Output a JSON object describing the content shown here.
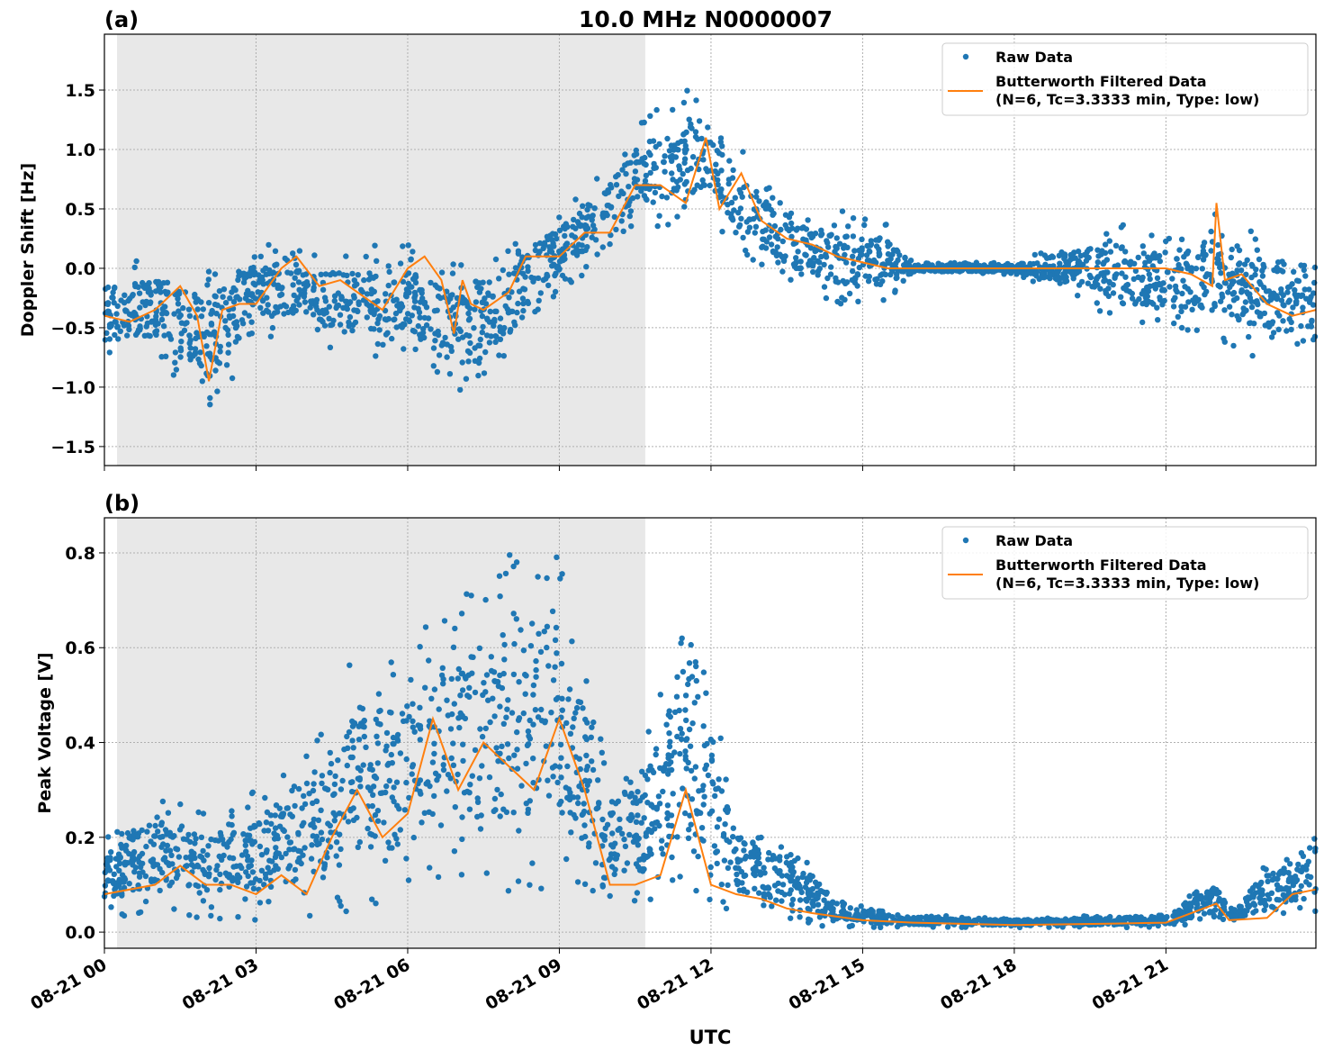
{
  "title": "10.0 MHz N0000007",
  "xlabel": "UTC",
  "colors": {
    "raw": "#1f77b4",
    "filtered": "#ff7f0e",
    "shading": "#e8e8e8",
    "grid": "#b0b0b0"
  },
  "x_ticks": [
    "08-21 00",
    "08-21 03",
    "08-21 06",
    "08-21 09",
    "08-21 12",
    "08-21 15",
    "08-21 18",
    "08-21 21"
  ],
  "x_tick_times": [
    "00:00",
    "03:00",
    "06:00",
    "09:00",
    "12:00",
    "15:00",
    "18:00",
    "21:00"
  ],
  "x_range": [
    "00:00",
    "23:58"
  ],
  "shaded_interval": [
    "00:15",
    "10:42"
  ],
  "legend": {
    "raw": "Raw Data",
    "filtered_1": "Butterworth Filtered Data",
    "filtered_2": "(N=6, Tc=3.3333 min, Type: low)",
    "placement": "upper right"
  },
  "chart_data": [
    {
      "type": "scatter+line",
      "panel_label": "(a)",
      "ylabel": "Doppler Shift [Hz]",
      "ylim": [
        -1.66,
        1.97
      ],
      "yticks": [
        -1.5,
        -1.0,
        -0.5,
        0.0,
        0.5,
        1.0,
        1.5
      ],
      "ytick_labels": [
        "−1.5",
        "−1.0",
        "−0.5",
        "0.0",
        "0.5",
        "1.0",
        "1.5"
      ],
      "grid": true,
      "series": [
        {
          "name": "Butterworth Filtered Data",
          "kind": "line",
          "x": [
            "00:00",
            "00:30",
            "01:00",
            "01:30",
            "01:50",
            "02:04",
            "02:20",
            "02:40",
            "03:00",
            "03:30",
            "03:48",
            "04:15",
            "04:40",
            "05:00",
            "05:30",
            "06:00",
            "06:20",
            "06:40",
            "06:55",
            "07:05",
            "07:15",
            "07:30",
            "08:00",
            "08:20",
            "09:00",
            "09:30",
            "10:00",
            "10:30",
            "11:00",
            "11:30",
            "11:54",
            "12:10",
            "12:36",
            "13:00",
            "13:30",
            "14:00",
            "14:30",
            "15:00",
            "15:30",
            "16:00",
            "17:00",
            "18:00",
            "19:00",
            "20:00",
            "21:00",
            "21:30",
            "21:55",
            "22:00",
            "22:10",
            "22:30",
            "23:00",
            "23:30",
            "23:58"
          ],
          "y": [
            -0.4,
            -0.45,
            -0.35,
            -0.15,
            -0.4,
            -0.95,
            -0.35,
            -0.3,
            -0.3,
            0.0,
            0.1,
            -0.15,
            -0.1,
            -0.2,
            -0.35,
            0.0,
            0.1,
            -0.1,
            -0.55,
            -0.1,
            -0.3,
            -0.35,
            -0.2,
            0.1,
            0.1,
            0.3,
            0.3,
            0.7,
            0.7,
            0.55,
            1.1,
            0.5,
            0.8,
            0.4,
            0.25,
            0.2,
            0.1,
            0.05,
            0.0,
            0.0,
            0.0,
            0.0,
            0.0,
            0.0,
            0.0,
            -0.05,
            -0.15,
            0.55,
            -0.1,
            -0.05,
            -0.3,
            -0.4,
            -0.35
          ]
        },
        {
          "name": "Raw Data",
          "kind": "scatter",
          "x": [
            "00:00",
            "01:00",
            "02:04",
            "03:00",
            "04:00",
            "05:00",
            "06:00",
            "07:00",
            "08:00",
            "09:00",
            "10:00",
            "10:42",
            "11:54",
            "12:36",
            "13:30",
            "14:30",
            "15:30",
            "16:00",
            "18:00",
            "19:30",
            "20:00",
            "21:00",
            "22:00",
            "23:00",
            "23:58"
          ],
          "lower": [
            -0.8,
            -0.75,
            -1.25,
            -0.6,
            -0.6,
            -0.8,
            -0.7,
            -1.2,
            -0.8,
            -0.2,
            0.1,
            0.3,
            0.4,
            0.1,
            -0.1,
            -0.3,
            -0.3,
            -0.05,
            -0.05,
            -0.3,
            -0.5,
            -0.5,
            -0.6,
            -0.8,
            -0.7
          ],
          "upper": [
            0.05,
            0.1,
            0.05,
            0.25,
            0.15,
            0.2,
            0.2,
            0.05,
            0.3,
            0.5,
            0.9,
            1.3,
            1.6,
            1.0,
            0.5,
            0.5,
            0.4,
            0.05,
            0.05,
            0.3,
            0.4,
            0.3,
            0.5,
            0.3,
            0.05
          ]
        }
      ]
    },
    {
      "type": "scatter+line",
      "panel_label": "(b)",
      "ylabel": "Peak Voltage [V]",
      "ylim": [
        -0.034,
        0.874
      ],
      "yticks": [
        0.0,
        0.2,
        0.4,
        0.6,
        0.8
      ],
      "ytick_labels": [
        "0.0",
        "0.2",
        "0.4",
        "0.6",
        "0.8"
      ],
      "grid": true,
      "series": [
        {
          "name": "Butterworth Filtered Data",
          "kind": "line",
          "x": [
            "00:00",
            "01:00",
            "01:30",
            "02:00",
            "02:30",
            "03:00",
            "03:30",
            "04:00",
            "04:30",
            "05:00",
            "05:30",
            "06:00",
            "06:30",
            "07:00",
            "07:30",
            "08:00",
            "08:30",
            "09:00",
            "09:30",
            "10:00",
            "10:30",
            "11:00",
            "11:30",
            "12:00",
            "12:30",
            "13:00",
            "13:30",
            "14:00",
            "15:00",
            "16:00",
            "18:00",
            "20:00",
            "21:00",
            "22:00",
            "22:15",
            "23:00",
            "23:30",
            "23:58"
          ],
          "y": [
            0.08,
            0.1,
            0.14,
            0.1,
            0.1,
            0.08,
            0.12,
            0.08,
            0.2,
            0.3,
            0.2,
            0.25,
            0.45,
            0.3,
            0.4,
            0.35,
            0.3,
            0.45,
            0.3,
            0.1,
            0.1,
            0.12,
            0.3,
            0.1,
            0.08,
            0.07,
            0.05,
            0.04,
            0.025,
            0.02,
            0.015,
            0.018,
            0.02,
            0.06,
            0.025,
            0.03,
            0.08,
            0.09
          ]
        },
        {
          "name": "Raw Data",
          "kind": "scatter",
          "x": [
            "00:00",
            "01:00",
            "02:00",
            "03:00",
            "04:00",
            "05:00",
            "06:00",
            "06:30",
            "07:30",
            "08:10",
            "09:00",
            "10:00",
            "10:42",
            "11:36",
            "12:30",
            "13:30",
            "14:30",
            "15:30",
            "18:00",
            "21:00",
            "22:00",
            "22:20",
            "23:00",
            "23:58"
          ],
          "lower": [
            0.03,
            0.03,
            0.03,
            0.02,
            0.03,
            0.04,
            0.06,
            0.08,
            0.1,
            0.08,
            0.1,
            0.05,
            0.05,
            0.05,
            0.04,
            0.02,
            0.01,
            0.01,
            0.01,
            0.01,
            0.02,
            0.02,
            0.02,
            0.04
          ],
          "upper": [
            0.2,
            0.3,
            0.25,
            0.3,
            0.4,
            0.6,
            0.6,
            0.7,
            0.75,
            0.83,
            0.8,
            0.35,
            0.4,
            0.78,
            0.25,
            0.2,
            0.08,
            0.04,
            0.03,
            0.04,
            0.12,
            0.05,
            0.15,
            0.2
          ]
        }
      ]
    }
  ]
}
